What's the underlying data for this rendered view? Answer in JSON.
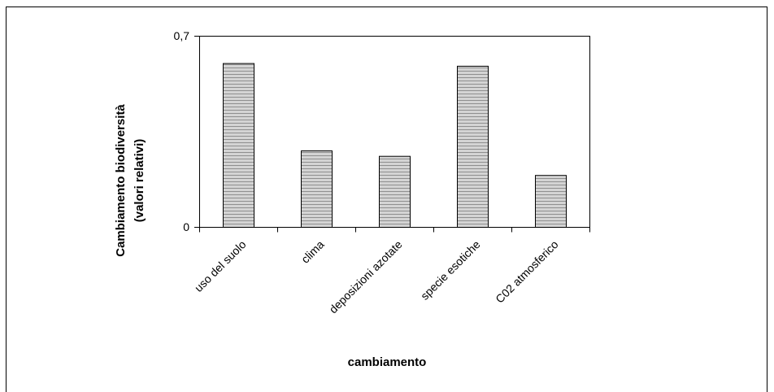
{
  "chart_data": {
    "type": "bar",
    "categories": [
      "uso del suolo",
      "clima",
      "deposizioni azotate",
      "specie esotiche",
      "C02 atmosferico"
    ],
    "values": [
      0.6,
      0.28,
      0.26,
      0.59,
      0.19
    ],
    "ylim": [
      0,
      0.7
    ],
    "ytick_labels": [
      "0",
      "0,7"
    ],
    "ylabel_line1": "Cambiamento biodiversità",
    "ylabel_line2": "(valori relativi)",
    "xlabel": "cambiamento",
    "grid": false,
    "colors": {
      "bar_fill": "#c8c8c8",
      "bar_stripe": "#9a9a9a",
      "bar_edge": "#000000",
      "axis": "#000000"
    },
    "bar_pattern": "horizontal-lines"
  }
}
